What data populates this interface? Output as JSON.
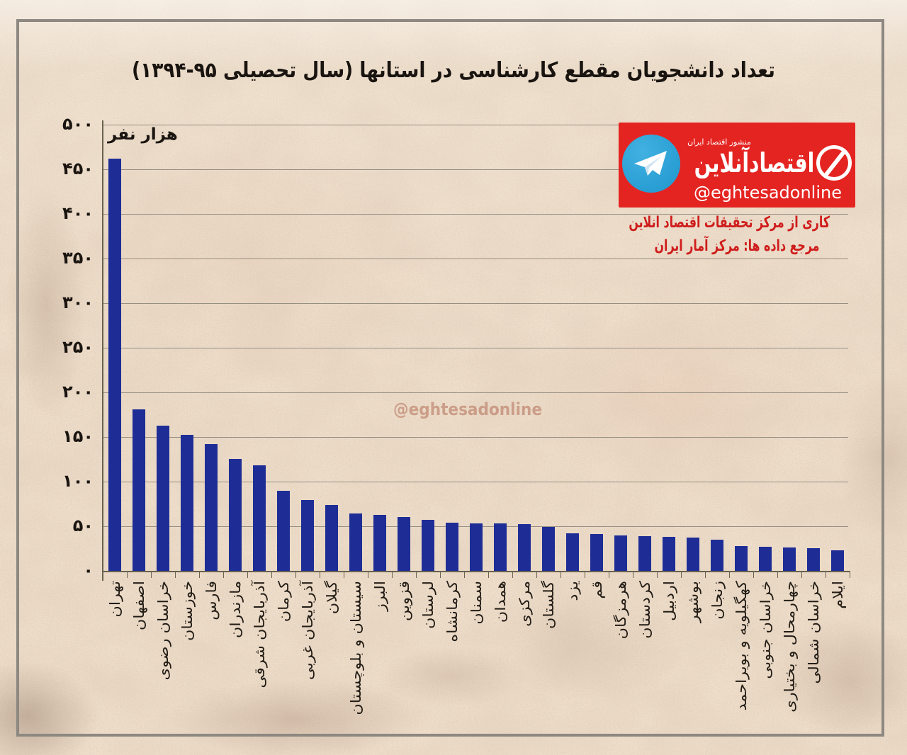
{
  "title": "تعداد دانشجویان مقطع کارشناسی در استانها (سال تحصیلی ۹۵-۱۳۹۴)",
  "y_axis": {
    "unit_label": "هزار نفر",
    "ticks": [
      "۵۰۰",
      "۴۵۰",
      "۴۰۰",
      "۳۵۰",
      "۳۰۰",
      "۲۵۰",
      "۲۰۰",
      "۱۵۰",
      "۱۰۰",
      "۵۰",
      "۰"
    ]
  },
  "watermark": "@eghtesadonline",
  "logo": {
    "tagline": "منشور اقتصاد ایران",
    "brand": "اقتصادآنلاین",
    "handle": "@eghtesadonline",
    "credit_line1": "کاری از مرکز تحقیقات اقتصاد انلاین",
    "credit_line2": "مرجع داده ها: مرکز آمار ایران"
  },
  "chart_data": {
    "type": "bar",
    "title": "تعداد دانشجویان مقطع کارشناسی در استانها (سال تحصیلی ۹۵-۱۳۹۴)",
    "ylabel": "هزار نفر",
    "ylim": [
      0,
      500
    ],
    "ytick_step": 50,
    "grid": true,
    "bar_color": "#1e2d96",
    "categories": [
      "تهران",
      "اصفهان",
      "خراسان رضوی",
      "خوزستان",
      "فارس",
      "مازندران",
      "آذربایجان شرقی",
      "کرمان",
      "آذربایجان غربی",
      "گیلان",
      "سیستان و بلوچستان",
      "البرز",
      "قزوین",
      "لرستان",
      "کرمانشاه",
      "سمنان",
      "همدان",
      "مرکزی",
      "گلستان",
      "یزد",
      "قم",
      "هرمزگان",
      "کردستان",
      "اردبیل",
      "بوشهر",
      "زنجان",
      "کهگیلویه و بویراحمد",
      "خراسان جنوبی",
      "چهارمحال و بختیاری",
      "خراسان شمالی",
      "ایلام"
    ],
    "values": [
      462,
      181,
      163,
      152,
      142,
      125,
      118,
      90,
      79,
      74,
      64,
      63,
      60,
      57,
      54,
      53,
      53,
      52,
      49,
      42,
      41,
      40,
      39,
      38,
      37,
      35,
      28,
      27,
      26,
      25,
      23
    ]
  }
}
